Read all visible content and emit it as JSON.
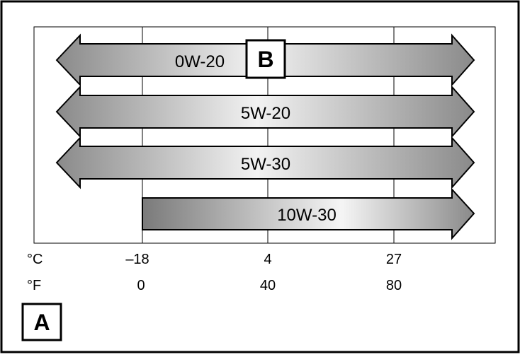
{
  "figure": {
    "callout_main": "A",
    "callout_inset": "B"
  },
  "scales": {
    "celsius_unit": "°C",
    "fahrenheit_unit": "°F",
    "celsius_ticks": [
      "–18",
      "4",
      "27"
    ],
    "fahrenheit_ticks": [
      "0",
      "40",
      "80"
    ]
  },
  "chart_data": {
    "type": "range_arrows",
    "x_units": [
      "°C",
      "°F"
    ],
    "grid": true,
    "series": [
      {
        "name": "0W-20",
        "from": "open",
        "to": "open"
      },
      {
        "name": "5W-20",
        "from": "open",
        "to": "open"
      },
      {
        "name": "5W-30",
        "from": "open",
        "to": "open"
      },
      {
        "name": "10W-30",
        "from_c": -18,
        "from_f": 0,
        "to": "open"
      }
    ],
    "gridlines_c": [
      -18,
      4,
      27
    ],
    "gridlines_f": [
      0,
      40,
      80
    ]
  }
}
